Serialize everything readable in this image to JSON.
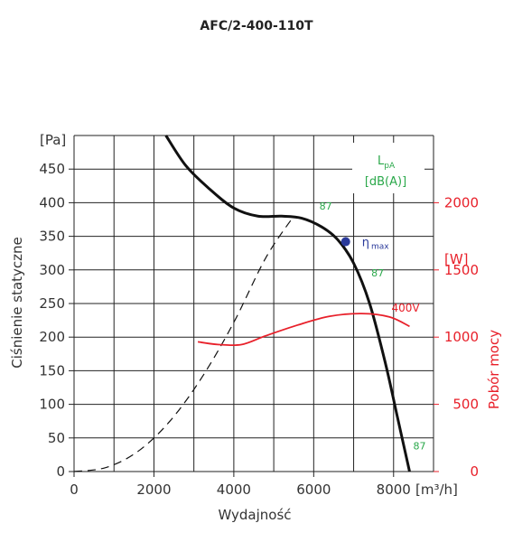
{
  "chart_data": {
    "type": "line",
    "title": "AFC/2-400-110T",
    "xlabel": "Wydajność",
    "x_unit": "[m³/h]",
    "ylabel": "Ciśnienie statyczne",
    "y_unit": "[Pa]",
    "y2label": "Pobór mocy",
    "y2_unit": "[W]",
    "xlim": [
      0,
      9000
    ],
    "ylim": [
      0,
      500
    ],
    "y2lim": [
      0,
      2500
    ],
    "x_ticks": [
      0,
      2000,
      4000,
      6000,
      8000
    ],
    "x_tick_labels": [
      "0",
      "2000",
      "4000",
      "6000",
      "8000"
    ],
    "y_ticks": [
      0,
      50,
      100,
      150,
      200,
      250,
      300,
      350,
      400,
      450
    ],
    "y_tick_labels": [
      "0",
      "50",
      "100",
      "150",
      "200",
      "250",
      "300",
      "350",
      "400",
      "450"
    ],
    "y2_ticks": [
      0,
      500,
      1000,
      1500,
      2000
    ],
    "y2_tick_labels": [
      "0",
      "500",
      "1000",
      "1500",
      "2000"
    ],
    "grid": true,
    "legend_box": {
      "title": "L",
      "subscript": "pA",
      "unit": "[dB(A)]"
    },
    "series": [
      {
        "role": "pressure",
        "axis": "left",
        "color": "#111111",
        "style": "solid",
        "x": [
          2300,
          2800,
          3400,
          4000,
          4600,
          5200,
          5700,
          6200,
          6600,
          7000,
          7400,
          7800,
          8100,
          8400
        ],
        "y": [
          500,
          455,
          420,
          392,
          380,
          380,
          377,
          364,
          345,
          310,
          250,
          160,
          80,
          0
        ]
      },
      {
        "role": "system",
        "axis": "left",
        "color": "#111111",
        "style": "dashed",
        "x": [
          0,
          800,
          1600,
          2400,
          3200,
          4000,
          4800,
          5500
        ],
        "y": [
          0,
          6,
          30,
          75,
          140,
          222,
          318,
          380
        ]
      },
      {
        "name": "400V",
        "axis": "right",
        "color": "#e8202a",
        "style": "solid",
        "x": [
          3100,
          3600,
          4200,
          4800,
          5600,
          6400,
          7200,
          7900,
          8400
        ],
        "y": [
          965,
          945,
          945,
          1010,
          1090,
          1155,
          1175,
          1150,
          1080
        ]
      }
    ],
    "annotations": [
      {
        "text": "87",
        "x": 6300,
        "y": 390
      },
      {
        "text": "87",
        "x": 7600,
        "y": 290
      },
      {
        "text": "87",
        "x": 8650,
        "y": 33
      },
      {
        "text": "400V",
        "x": 8300,
        "y": 1190,
        "axis": "right"
      }
    ],
    "eta_max": {
      "label": "η",
      "subscript": "max",
      "x": 6800,
      "y": 342,
      "color": "#2a3a9a"
    }
  }
}
